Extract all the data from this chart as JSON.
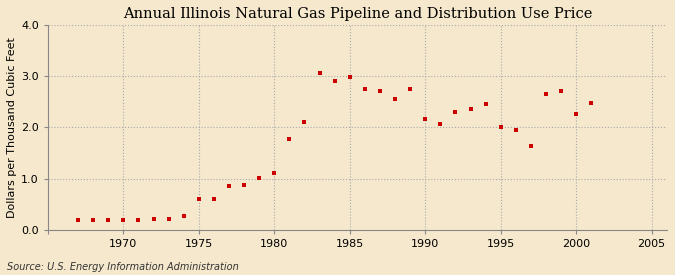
{
  "title": "Annual Illinois Natural Gas Pipeline and Distribution Use Price",
  "ylabel": "Dollars per Thousand Cubic Feet",
  "source": "Source: U.S. Energy Information Administration",
  "background_color": "#f5e8cc",
  "plot_bg_color": "#f5e8cc",
  "marker_color": "#cc0000",
  "years": [
    1967,
    1968,
    1969,
    1970,
    1971,
    1972,
    1973,
    1974,
    1975,
    1976,
    1977,
    1978,
    1979,
    1980,
    1981,
    1982,
    1983,
    1984,
    1985,
    1986,
    1987,
    1988,
    1989,
    1990,
    1991,
    1992,
    1993,
    1994,
    1995,
    1996,
    1997,
    1998,
    1999,
    2000,
    2001
  ],
  "values": [
    0.19,
    0.2,
    0.2,
    0.2,
    0.2,
    0.21,
    0.22,
    0.27,
    0.6,
    0.6,
    0.85,
    0.88,
    1.02,
    1.1,
    1.78,
    2.1,
    3.07,
    2.9,
    2.98,
    2.75,
    2.7,
    2.55,
    2.75,
    2.17,
    2.07,
    2.3,
    2.35,
    2.45,
    2.0,
    1.95,
    1.64,
    2.65,
    2.7,
    2.27,
    2.47
  ],
  "xlim": [
    1965,
    2006
  ],
  "ylim": [
    0.0,
    4.0
  ],
  "yticks": [
    0.0,
    1.0,
    2.0,
    3.0,
    4.0
  ],
  "xticks": [
    1965,
    1970,
    1975,
    1980,
    1985,
    1990,
    1995,
    2000,
    2005
  ],
  "xticklabels": [
    "",
    "1970",
    "1975",
    "1980",
    "1985",
    "1990",
    "1995",
    "2000",
    "2005"
  ],
  "grid_color": "#aaaaaa",
  "title_fontsize": 10.5,
  "label_fontsize": 8,
  "tick_fontsize": 8,
  "source_fontsize": 7
}
